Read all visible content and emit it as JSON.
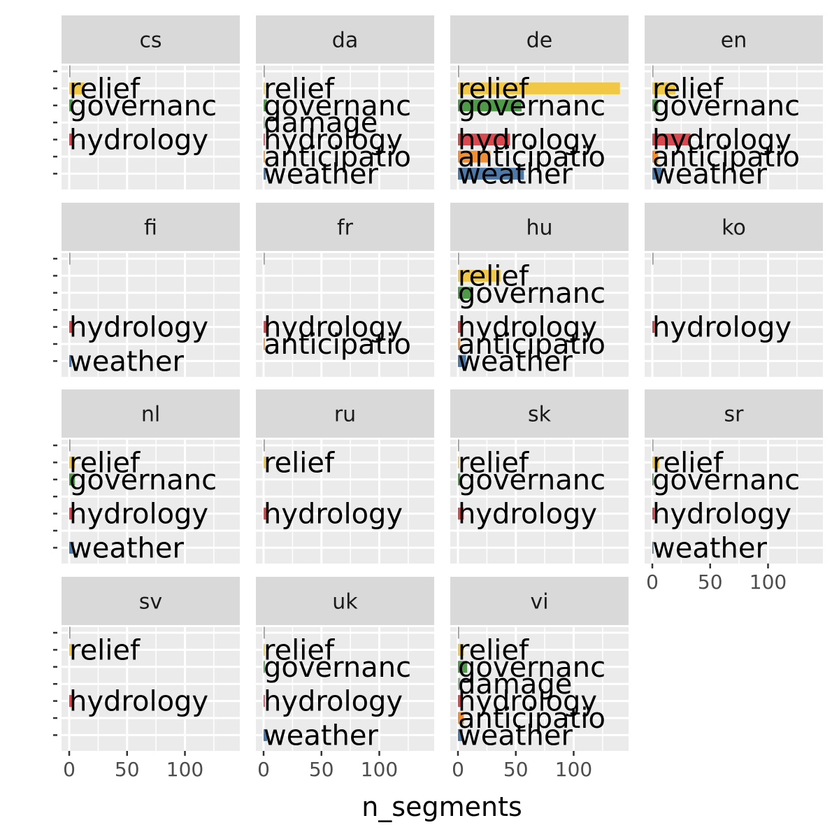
{
  "chart_data": {
    "type": "bar",
    "orientation": "horizontal",
    "facet_by": "language",
    "xlabel": "n_segments",
    "ylabel": "",
    "xlim": [
      0,
      140
    ],
    "x_ticks": [
      0,
      50,
      100
    ],
    "grid": true,
    "legend": "none",
    "categories": [
      "",
      "relief",
      "governanc",
      "damage",
      "hydrology",
      "anticipatio",
      "weather"
    ],
    "category_colors": {
      "": "#999999",
      "relief": "#f0c846",
      "governanc": "#4f9a48",
      "damage": "#8fae8f",
      "hydrology": "#d9474f",
      "anticipatio": "#ef8e35",
      "weather": "#4e79a7"
    },
    "panels": [
      {
        "facet": "cs",
        "bars": [
          {
            "category": "",
            "value": 1
          },
          {
            "category": "relief",
            "value": 13
          },
          {
            "category": "governanc",
            "value": 3
          },
          {
            "category": "hydrology",
            "value": 4
          }
        ]
      },
      {
        "facet": "da",
        "bars": [
          {
            "category": "",
            "value": 1
          },
          {
            "category": "relief",
            "value": 1
          },
          {
            "category": "governanc",
            "value": 3
          },
          {
            "category": "damage",
            "value": 1
          },
          {
            "category": "hydrology",
            "value": 1
          },
          {
            "category": "anticipatio",
            "value": 1
          },
          {
            "category": "weather",
            "value": 2
          }
        ]
      },
      {
        "facet": "de",
        "bars": [
          {
            "category": "",
            "value": 1
          },
          {
            "category": "relief",
            "value": 140
          },
          {
            "category": "governanc",
            "value": 55
          },
          {
            "category": "hydrology",
            "value": 45
          },
          {
            "category": "anticipatio",
            "value": 28
          },
          {
            "category": "weather",
            "value": 57
          }
        ]
      },
      {
        "facet": "en",
        "bars": [
          {
            "category": "",
            "value": 0
          },
          {
            "category": "relief",
            "value": 20
          },
          {
            "category": "governanc",
            "value": 5
          },
          {
            "category": "hydrology",
            "value": 33
          },
          {
            "category": "anticipatio",
            "value": 5
          },
          {
            "category": "weather",
            "value": 8
          }
        ]
      },
      {
        "facet": "fi",
        "bars": [
          {
            "category": "",
            "value": 1
          },
          {
            "category": "hydrology",
            "value": 3
          },
          {
            "category": "weather",
            "value": 2
          }
        ]
      },
      {
        "facet": "fr",
        "bars": [
          {
            "category": "",
            "value": 1
          },
          {
            "category": "hydrology",
            "value": 3
          },
          {
            "category": "anticipatio",
            "value": 1
          }
        ]
      },
      {
        "facet": "hu",
        "bars": [
          {
            "category": "",
            "value": 1
          },
          {
            "category": "relief",
            "value": 37
          },
          {
            "category": "governanc",
            "value": 12
          },
          {
            "category": "hydrology",
            "value": 4
          },
          {
            "category": "anticipatio",
            "value": 2
          },
          {
            "category": "weather",
            "value": 7
          }
        ]
      },
      {
        "facet": "ko",
        "bars": [
          {
            "category": "",
            "value": 1
          },
          {
            "category": "hydrology",
            "value": 2
          }
        ]
      },
      {
        "facet": "nl",
        "bars": [
          {
            "category": "",
            "value": 1
          },
          {
            "category": "relief",
            "value": 5
          },
          {
            "category": "governanc",
            "value": 5
          },
          {
            "category": "hydrology",
            "value": 3
          },
          {
            "category": "weather",
            "value": 4
          }
        ]
      },
      {
        "facet": "ru",
        "bars": [
          {
            "category": "",
            "value": 1
          },
          {
            "category": "relief",
            "value": 2
          },
          {
            "category": "hydrology",
            "value": 3
          }
        ]
      },
      {
        "facet": "sk",
        "bars": [
          {
            "category": "",
            "value": 1
          },
          {
            "category": "relief",
            "value": 1
          },
          {
            "category": "governanc",
            "value": 2
          },
          {
            "category": "hydrology",
            "value": 5
          }
        ]
      },
      {
        "facet": "sr",
        "bars": [
          {
            "category": "",
            "value": 0
          },
          {
            "category": "relief",
            "value": 6
          },
          {
            "category": "governanc",
            "value": 1
          },
          {
            "category": "hydrology",
            "value": 2
          },
          {
            "category": "weather",
            "value": 1
          }
        ]
      },
      {
        "facet": "sv",
        "bars": [
          {
            "category": "",
            "value": 1
          },
          {
            "category": "relief",
            "value": 2
          },
          {
            "category": "hydrology",
            "value": 3
          }
        ]
      },
      {
        "facet": "uk",
        "bars": [
          {
            "category": "",
            "value": 1
          },
          {
            "category": "relief",
            "value": 1
          },
          {
            "category": "governanc",
            "value": 1
          },
          {
            "category": "hydrology",
            "value": 1
          },
          {
            "category": "weather",
            "value": 3
          }
        ]
      },
      {
        "facet": "vi",
        "bars": [
          {
            "category": "",
            "value": 1
          },
          {
            "category": "relief",
            "value": 5
          },
          {
            "category": "governanc",
            "value": 8
          },
          {
            "category": "damage",
            "value": 2
          },
          {
            "category": "hydrology",
            "value": 3
          },
          {
            "category": "anticipatio",
            "value": 5
          },
          {
            "category": "weather",
            "value": 4
          }
        ]
      }
    ]
  }
}
